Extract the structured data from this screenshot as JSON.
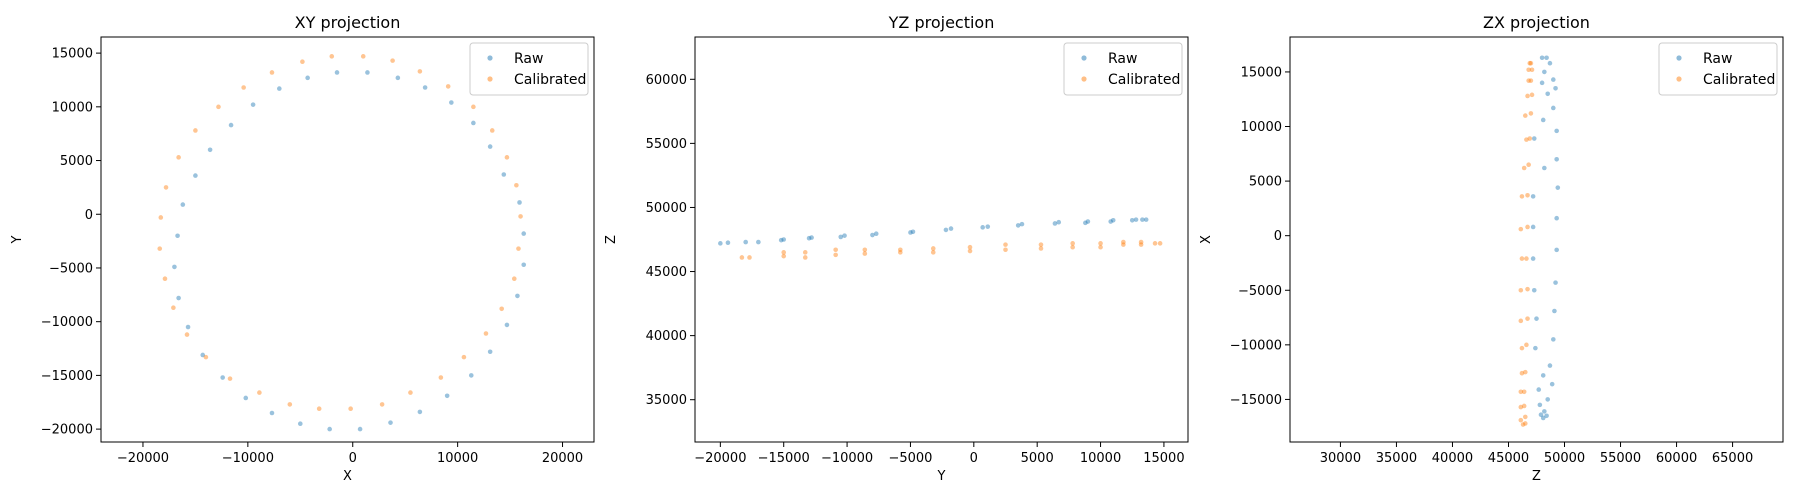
{
  "chart_data": [
    {
      "type": "scatter",
      "title": "XY projection",
      "xlabel": "X",
      "ylabel": "Y",
      "xlim": [
        -24000,
        23000
      ],
      "ylim": [
        -21200,
        16500
      ],
      "xticks": [
        -20000,
        -10000,
        0,
        10000,
        20000
      ],
      "yticks": [
        -20000,
        -15000,
        -10000,
        -5000,
        0,
        5000,
        10000,
        15000
      ],
      "legend": "top-right",
      "grid": false,
      "series": [
        {
          "name": "Raw",
          "color": "#1f77b4",
          "points": [
            [
              16300,
              -1800
            ],
            [
              16300,
              -4700
            ],
            [
              15700,
              -7600
            ],
            [
              14700,
              -10300
            ],
            [
              13100,
              -12800
            ],
            [
              11300,
              -15000
            ],
            [
              9000,
              -16900
            ],
            [
              6400,
              -18400
            ],
            [
              3600,
              -19400
            ],
            [
              700,
              -20000
            ],
            [
              -2200,
              -20000
            ],
            [
              -5000,
              -19500
            ],
            [
              -7700,
              -18500
            ],
            [
              -10200,
              -17100
            ],
            [
              -12400,
              -15200
            ],
            [
              -14300,
              -13100
            ],
            [
              -15700,
              -10500
            ],
            [
              -16600,
              -7800
            ],
            [
              -17000,
              -4900
            ],
            [
              -16700,
              -2000
            ],
            [
              -16200,
              900
            ],
            [
              -15000,
              3600
            ],
            [
              -13600,
              6000
            ],
            [
              -11600,
              8300
            ],
            [
              -9500,
              10200
            ],
            [
              -7000,
              11700
            ],
            [
              -4300,
              12700
            ],
            [
              -1500,
              13200
            ],
            [
              1400,
              13200
            ],
            [
              4300,
              12700
            ],
            [
              6900,
              11800
            ],
            [
              9400,
              10400
            ],
            [
              11500,
              8500
            ],
            [
              13100,
              6300
            ],
            [
              14400,
              3700
            ],
            [
              15900,
              1100
            ]
          ]
        },
        {
          "name": "Calibrated",
          "color": "#ff7f0e",
          "points": [
            [
              15800,
              -3200
            ],
            [
              15400,
              -6000
            ],
            [
              14200,
              -8800
            ],
            [
              12700,
              -11100
            ],
            [
              10600,
              -13300
            ],
            [
              8400,
              -15200
            ],
            [
              5500,
              -16600
            ],
            [
              2800,
              -17700
            ],
            [
              -200,
              -18100
            ],
            [
              -3200,
              -18100
            ],
            [
              -6000,
              -17700
            ],
            [
              -8900,
              -16600
            ],
            [
              -11700,
              -15300
            ],
            [
              -14000,
              -13300
            ],
            [
              -15800,
              -11200
            ],
            [
              -17100,
              -8700
            ],
            [
              -17900,
              -6000
            ],
            [
              -18400,
              -3200
            ],
            [
              -18300,
              -300
            ],
            [
              -17800,
              2500
            ],
            [
              -16600,
              5300
            ],
            [
              -15000,
              7800
            ],
            [
              -12800,
              10000
            ],
            [
              -10400,
              11800
            ],
            [
              -7700,
              13200
            ],
            [
              -4800,
              14200
            ],
            [
              -2000,
              14700
            ],
            [
              1000,
              14700
            ],
            [
              3800,
              14300
            ],
            [
              6400,
              13300
            ],
            [
              9100,
              11900
            ],
            [
              11500,
              10000
            ],
            [
              13300,
              7800
            ],
            [
              14700,
              5300
            ],
            [
              15600,
              2700
            ],
            [
              16000,
              -200
            ]
          ]
        }
      ]
    },
    {
      "type": "scatter",
      "title": "YZ projection",
      "xlabel": "Y",
      "ylabel": "Z",
      "xlim": [
        -22000,
        16900
      ],
      "ylim": [
        31700,
        63300
      ],
      "xticks": [
        -20000,
        -15000,
        -10000,
        -5000,
        0,
        5000,
        10000,
        15000
      ],
      "yticks": [
        35000,
        40000,
        45000,
        50000,
        55000,
        60000
      ],
      "legend": "top-right",
      "grid": false,
      "series": [
        {
          "name": "Raw",
          "color": "#1f77b4",
          "points": [
            [
              -20000,
              47200
            ],
            [
              -19400,
              47250
            ],
            [
              -18000,
              47300
            ],
            [
              -17000,
              47300
            ],
            [
              -15200,
              47450
            ],
            [
              -15000,
              47500
            ],
            [
              -13000,
              47600
            ],
            [
              -12800,
              47650
            ],
            [
              -10500,
              47700
            ],
            [
              -10200,
              47800
            ],
            [
              -8000,
              47850
            ],
            [
              -7700,
              47950
            ],
            [
              -5000,
              48050
            ],
            [
              -4800,
              48100
            ],
            [
              -2200,
              48250
            ],
            [
              -1800,
              48350
            ],
            [
              700,
              48450
            ],
            [
              1100,
              48500
            ],
            [
              3500,
              48600
            ],
            [
              3800,
              48700
            ],
            [
              6400,
              48750
            ],
            [
              6700,
              48850
            ],
            [
              8800,
              48800
            ],
            [
              9000,
              48900
            ],
            [
              10800,
              48900
            ],
            [
              11000,
              49000
            ],
            [
              12500,
              49000
            ],
            [
              12800,
              49050
            ],
            [
              13300,
              49050
            ],
            [
              13600,
              49050
            ]
          ]
        },
        {
          "name": "Calibrated",
          "color": "#ff7f0e",
          "points": [
            [
              -18300,
              46100
            ],
            [
              -17700,
              46100
            ],
            [
              -15000,
              46200
            ],
            [
              -15000,
              46500
            ],
            [
              -13300,
              46100
            ],
            [
              -13300,
              46500
            ],
            [
              -10900,
              46300
            ],
            [
              -10900,
              46700
            ],
            [
              -8600,
              46400
            ],
            [
              -8600,
              46700
            ],
            [
              -5800,
              46500
            ],
            [
              -5800,
              46700
            ],
            [
              -3200,
              46500
            ],
            [
              -3200,
              46800
            ],
            [
              -300,
              46600
            ],
            [
              -300,
              46900
            ],
            [
              2500,
              46700
            ],
            [
              2500,
              47100
            ],
            [
              5300,
              46800
            ],
            [
              5300,
              47100
            ],
            [
              7800,
              46900
            ],
            [
              7800,
              47200
            ],
            [
              10000,
              46900
            ],
            [
              10000,
              47200
            ],
            [
              11800,
              47100
            ],
            [
              11800,
              47300
            ],
            [
              13200,
              47100
            ],
            [
              13200,
              47300
            ],
            [
              14300,
              47200
            ],
            [
              14700,
              47200
            ]
          ]
        }
      ]
    },
    {
      "type": "scatter",
      "title": "ZX projection",
      "xlabel": "Z",
      "ylabel": "X",
      "xlim": [
        25500,
        69500
      ],
      "ylim": [
        -18900,
        18200
      ],
      "xticks": [
        30000,
        35000,
        40000,
        45000,
        50000,
        55000,
        60000,
        65000
      ],
      "yticks": [
        -15000,
        -10000,
        -5000,
        0,
        5000,
        10000,
        15000
      ],
      "legend": "top-right",
      "grid": false,
      "series": [
        {
          "name": "Raw",
          "color": "#1f77b4",
          "points": [
            [
              48000,
              16300
            ],
            [
              48400,
              16300
            ],
            [
              48700,
              15800
            ],
            [
              48200,
              15000
            ],
            [
              49000,
              14300
            ],
            [
              48000,
              14000
            ],
            [
              49200,
              13500
            ],
            [
              48500,
              13000
            ],
            [
              49000,
              11700
            ],
            [
              48100,
              10600
            ],
            [
              49300,
              9600
            ],
            [
              47300,
              8900
            ],
            [
              49300,
              7000
            ],
            [
              48200,
              6200
            ],
            [
              49400,
              4400
            ],
            [
              47200,
              3600
            ],
            [
              49300,
              1600
            ],
            [
              47200,
              800
            ],
            [
              49300,
              -1300
            ],
            [
              47200,
              -2100
            ],
            [
              49200,
              -4300
            ],
            [
              47300,
              -5000
            ],
            [
              49100,
              -6900
            ],
            [
              47500,
              -7600
            ],
            [
              49000,
              -9500
            ],
            [
              47400,
              -10300
            ],
            [
              48700,
              -11900
            ],
            [
              48100,
              -12800
            ],
            [
              48900,
              -13600
            ],
            [
              47700,
              -14100
            ],
            [
              48500,
              -15000
            ],
            [
              47800,
              -15500
            ],
            [
              48200,
              -16100
            ],
            [
              47900,
              -16400
            ],
            [
              48400,
              -16500
            ],
            [
              48100,
              -16700
            ]
          ]
        },
        {
          "name": "Calibrated",
          "color": "#ff7f0e",
          "points": [
            [
              46900,
              15800
            ],
            [
              47000,
              15800
            ],
            [
              47100,
              15200
            ],
            [
              46800,
              15200
            ],
            [
              47000,
              14200
            ],
            [
              46800,
              14200
            ],
            [
              47100,
              12900
            ],
            [
              46700,
              12800
            ],
            [
              47000,
              11200
            ],
            [
              46500,
              11000
            ],
            [
              46900,
              8900
            ],
            [
              46600,
              8800
            ],
            [
              46800,
              6500
            ],
            [
              46400,
              6200
            ],
            [
              46700,
              3700
            ],
            [
              46200,
              3600
            ],
            [
              46700,
              800
            ],
            [
              46100,
              600
            ],
            [
              46600,
              -2100
            ],
            [
              46200,
              -2100
            ],
            [
              46700,
              -4900
            ],
            [
              46100,
              -5000
            ],
            [
              46700,
              -7600
            ],
            [
              46100,
              -7800
            ],
            [
              46600,
              -10000
            ],
            [
              46200,
              -10300
            ],
            [
              46500,
              -12500
            ],
            [
              46200,
              -12600
            ],
            [
              46400,
              -14300
            ],
            [
              46100,
              -14300
            ],
            [
              46400,
              -15600
            ],
            [
              46100,
              -15700
            ],
            [
              46500,
              -16600
            ],
            [
              46100,
              -16900
            ],
            [
              46500,
              -17200
            ],
            [
              46300,
              -17300
            ]
          ]
        }
      ]
    }
  ]
}
